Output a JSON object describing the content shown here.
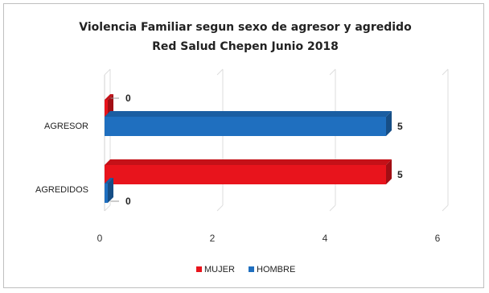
{
  "chart_data": {
    "type": "bar",
    "orientation": "horizontal",
    "title_lines": [
      "Violencia Familiar segun sexo  de agresor y agredido",
      "Red Salud Chepen Junio 2018"
    ],
    "categories": [
      "AGRESOR",
      "AGREDIDOS"
    ],
    "series": [
      {
        "name": "MUJER",
        "color": "#e8141c",
        "values": [
          0,
          5
        ]
      },
      {
        "name": "HOMBRE",
        "color": "#1f6fbf",
        "values": [
          5,
          0
        ]
      }
    ],
    "xlim": [
      0,
      6
    ],
    "xticks": [
      "0",
      "2",
      "4",
      "6"
    ],
    "grid": true,
    "legend": "bottom"
  }
}
